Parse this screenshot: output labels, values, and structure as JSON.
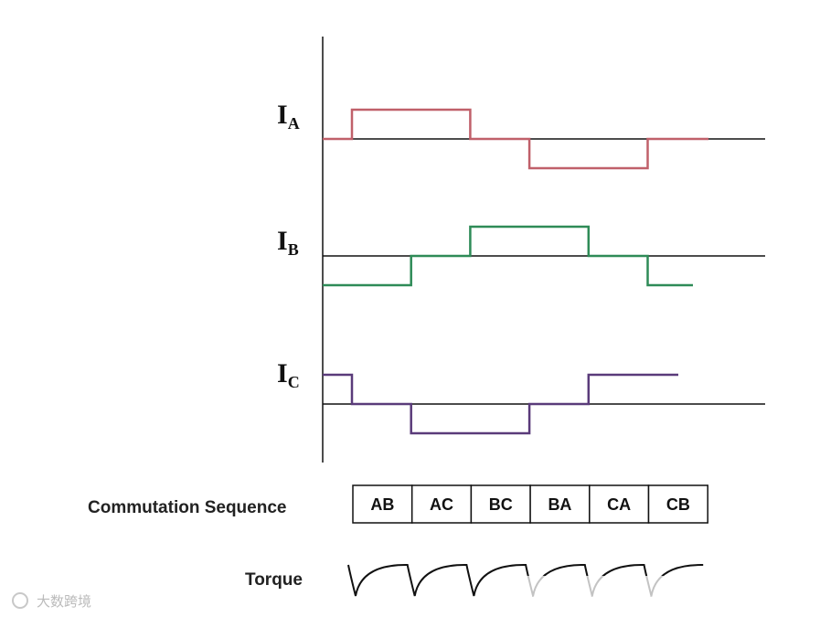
{
  "diagram": {
    "phase_labels": [
      {
        "main": "I",
        "sub": "A",
        "color": "#c0606a"
      },
      {
        "main": "I",
        "sub": "B",
        "color": "#2e8b57"
      },
      {
        "main": "I",
        "sub": "C",
        "color": "#5a3b7a"
      }
    ],
    "waveforms": {
      "A": [
        0,
        1,
        1,
        0,
        -1,
        -1,
        0
      ],
      "B": [
        -1,
        -1,
        0,
        1,
        1,
        0,
        -1
      ],
      "C": [
        1,
        0,
        -1,
        -1,
        0,
        1,
        1
      ]
    },
    "commutation_label": "Commutation Sequence",
    "commutation_sequence": [
      "AB",
      "AC",
      "BC",
      "BA",
      "CA",
      "CB"
    ],
    "torque_label": "Torque",
    "axis_color": "#111111",
    "watermark": "大数跨境"
  }
}
